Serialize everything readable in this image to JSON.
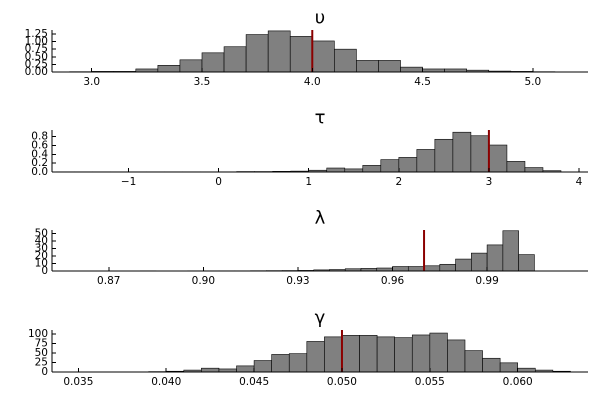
{
  "colors": {
    "bar_fill": "#808080",
    "bar_stroke": "#000000",
    "ref_line": "#8b0000",
    "background": "#ffffff"
  },
  "chart_data": [
    {
      "type": "bar",
      "title": "υ",
      "xlim": [
        2.82,
        5.25
      ],
      "ylim": [
        0,
        1.38
      ],
      "xticks": [
        3.0,
        3.5,
        4.0,
        4.5,
        5.0
      ],
      "xtick_labels": [
        "3.0",
        "3.5",
        "4.0",
        "4.5",
        "5.0"
      ],
      "yticks": [
        0,
        0.25,
        0.5,
        0.75,
        1.0,
        1.25
      ],
      "ytick_labels": [
        "0.00",
        "0.25",
        "0.50",
        "0.75",
        "1.00",
        "1.25"
      ],
      "bin_width": 0.1,
      "bin_start": [
        2.9,
        3.0,
        3.1,
        3.2,
        3.3,
        3.4,
        3.5,
        3.6,
        3.7,
        3.8,
        3.9,
        4.0,
        4.1,
        4.2,
        4.3,
        4.4,
        4.5,
        4.6,
        4.7,
        4.8,
        4.9,
        5.0
      ],
      "values": [
        0.01,
        0.02,
        0.02,
        0.1,
        0.22,
        0.4,
        0.63,
        0.83,
        1.23,
        1.35,
        1.17,
        1.02,
        0.75,
        0.38,
        0.38,
        0.16,
        0.1,
        0.1,
        0.06,
        0.03,
        0.02,
        0.01
      ],
      "reference_x": 4.0,
      "grid": false
    },
    {
      "type": "bar",
      "title": "τ",
      "xlim": [
        -1.85,
        4.1
      ],
      "ylim": [
        0,
        0.95
      ],
      "xticks": [
        -1,
        0,
        1,
        2,
        3,
        4
      ],
      "xtick_labels": [
        "−1",
        "0",
        "1",
        "2",
        "3",
        "4"
      ],
      "yticks": [
        0,
        0.2,
        0.4,
        0.6,
        0.8
      ],
      "ytick_labels": [
        "0.0",
        "0.2",
        "0.4",
        "0.6",
        "0.8"
      ],
      "bin_width": 0.2,
      "bin_start": [
        -1.8,
        -1.6,
        -1.4,
        -1.2,
        -1.0,
        -0.8,
        -0.6,
        -0.4,
        -0.2,
        0.0,
        0.2,
        0.4,
        0.6,
        0.8,
        1.0,
        1.2,
        1.4,
        1.6,
        1.8,
        2.0,
        2.2,
        2.4,
        2.6,
        2.8,
        3.0,
        3.2,
        3.4,
        3.6
      ],
      "values": [
        0.005,
        0.005,
        0.005,
        0.005,
        0.005,
        0.005,
        0.005,
        0.005,
        0.005,
        0.005,
        0.01,
        0.01,
        0.015,
        0.02,
        0.04,
        0.09,
        0.07,
        0.15,
        0.28,
        0.33,
        0.51,
        0.74,
        0.9,
        0.82,
        0.61,
        0.24,
        0.1,
        0.03
      ],
      "reference_x": 3.0,
      "grid": false
    },
    {
      "type": "bar",
      "title": "λ",
      "xlim": [
        0.852,
        1.022
      ],
      "ylim": [
        0,
        55
      ],
      "xticks": [
        0.87,
        0.9,
        0.93,
        0.96,
        0.99
      ],
      "xtick_labels": [
        "0.87",
        "0.90",
        "0.93",
        "0.96",
        "0.99"
      ],
      "yticks": [
        0,
        10,
        20,
        30,
        40,
        50
      ],
      "ytick_labels": [
        "0",
        "10",
        "20",
        "30",
        "40",
        "50"
      ],
      "bin_width": 0.005,
      "bin_start": [
        0.855,
        0.86,
        0.865,
        0.87,
        0.875,
        0.88,
        0.885,
        0.89,
        0.895,
        0.9,
        0.905,
        0.91,
        0.915,
        0.92,
        0.925,
        0.93,
        0.935,
        0.94,
        0.945,
        0.95,
        0.955,
        0.96,
        0.965,
        0.97,
        0.975,
        0.98,
        0.985,
        0.99,
        0.995,
        1.0
      ],
      "values": [
        0.2,
        0.2,
        0.2,
        0.2,
        0.2,
        0.3,
        0.2,
        0.2,
        0.3,
        0.3,
        0.3,
        0.3,
        0.4,
        0.5,
        0.6,
        0.8,
        1.5,
        2,
        3,
        3.5,
        4,
        6,
        6,
        7,
        9,
        16,
        24,
        35,
        54,
        22
      ],
      "reference_x": 0.97,
      "grid": false
    },
    {
      "type": "bar",
      "title": "γ",
      "xlim": [
        0.0335,
        0.064
      ],
      "ylim": [
        0,
        110
      ],
      "xticks": [
        0.035,
        0.04,
        0.045,
        0.05,
        0.055,
        0.06
      ],
      "xtick_labels": [
        "0.035",
        "0.040",
        "0.045",
        "0.050",
        "0.055",
        "0.060"
      ],
      "yticks": [
        0,
        25,
        50,
        75,
        100
      ],
      "ytick_labels": [
        "0",
        "25",
        "50",
        "75",
        "100"
      ],
      "bin_width": 0.001,
      "bin_start": [
        0.035,
        0.036,
        0.037,
        0.038,
        0.039,
        0.04,
        0.041,
        0.042,
        0.043,
        0.044,
        0.045,
        0.046,
        0.047,
        0.048,
        0.049,
        0.05,
        0.051,
        0.052,
        0.053,
        0.054,
        0.055,
        0.056,
        0.057,
        0.058,
        0.059,
        0.06,
        0.061,
        0.062
      ],
      "values": [
        0.5,
        0.5,
        0.5,
        0.5,
        1,
        2,
        5,
        10,
        8,
        16,
        30,
        46,
        48,
        80,
        92,
        96,
        96,
        92,
        90,
        97,
        102,
        84,
        56,
        36,
        24,
        10,
        5,
        2
      ],
      "reference_x": 0.05,
      "grid": false
    }
  ]
}
